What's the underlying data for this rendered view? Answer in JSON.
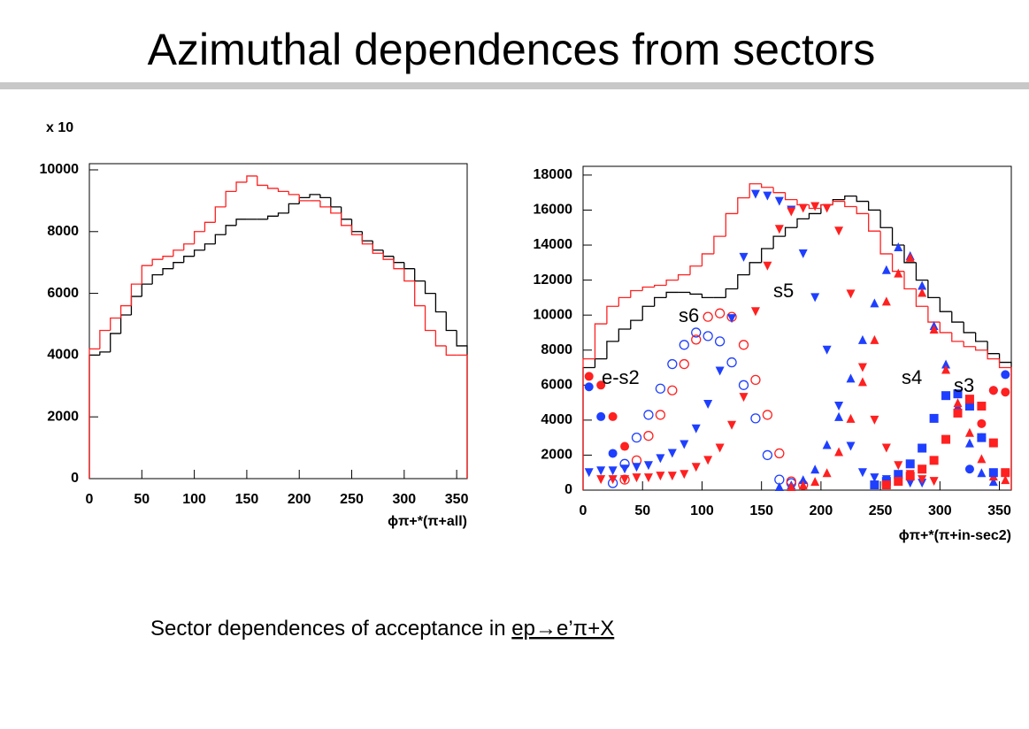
{
  "title": "Azimuthal dependences from sectors",
  "caption": {
    "text": "Sector dependences of acceptance in",
    "formula": "ep→e’π+X"
  },
  "chart_data": [
    {
      "type": "histogram",
      "y_multiplier": "x 10",
      "xlabel": "ϕπ+*(π+all)",
      "bins": [
        0,
        10,
        20,
        30,
        40,
        50,
        60,
        70,
        80,
        90,
        100,
        110,
        120,
        130,
        140,
        150,
        160,
        170,
        180,
        190,
        200,
        210,
        220,
        230,
        240,
        250,
        260,
        270,
        280,
        290,
        300,
        310,
        320,
        330,
        340,
        350,
        360
      ],
      "xlim": [
        0,
        360
      ],
      "xticks": [
        0,
        50,
        100,
        150,
        200,
        250,
        300,
        350
      ],
      "ylim": [
        0,
        10200
      ],
      "yticks": [
        0,
        2000,
        4000,
        6000,
        8000,
        10000
      ],
      "series": [
        {
          "color": "#000000",
          "values": [
            4000,
            4100,
            4700,
            5300,
            5900,
            6300,
            6600,
            6800,
            7000,
            7200,
            7400,
            7600,
            7900,
            8200,
            8400,
            8400,
            8400,
            8500,
            8600,
            8900,
            9100,
            9200,
            9100,
            8800,
            8400,
            8000,
            7700,
            7400,
            7200,
            7000,
            6800,
            6400,
            6000,
            5400,
            4800,
            4300
          ]
        },
        {
          "color": "#ff2020",
          "values": [
            4200,
            4800,
            5200,
            5600,
            6300,
            6900,
            7100,
            7200,
            7400,
            7600,
            8000,
            8300,
            8800,
            9300,
            9600,
            9800,
            9500,
            9400,
            9300,
            9200,
            9000,
            9000,
            8800,
            8600,
            8200,
            7900,
            7600,
            7300,
            7100,
            6800,
            6400,
            5600,
            4800,
            4300,
            4000,
            4000
          ]
        }
      ]
    },
    {
      "type": "histogram",
      "xlabel": "ϕπ+*(π+in-sec2)",
      "bins": [
        0,
        10,
        20,
        30,
        40,
        50,
        60,
        70,
        80,
        90,
        100,
        110,
        120,
        130,
        140,
        150,
        160,
        170,
        180,
        190,
        200,
        210,
        220,
        230,
        240,
        250,
        260,
        270,
        280,
        290,
        300,
        310,
        320,
        330,
        340,
        350,
        360
      ],
      "xlim": [
        0,
        360
      ],
      "xticks": [
        0,
        50,
        100,
        150,
        200,
        250,
        300,
        350
      ],
      "ylim": [
        0,
        18500
      ],
      "yticks": [
        0,
        2000,
        4000,
        6000,
        8000,
        10000,
        12000,
        14000,
        16000,
        18000
      ],
      "series": [
        {
          "color": "#000000",
          "values": [
            7000,
            7500,
            8500,
            9200,
            9700,
            10500,
            11000,
            11300,
            11300,
            11200,
            11000,
            11000,
            11500,
            12300,
            13000,
            13800,
            14500,
            15000,
            15500,
            15800,
            16300,
            16600,
            16800,
            16500,
            16000,
            15000,
            14000,
            13000,
            12000,
            11000,
            10200,
            9600,
            9000,
            8500,
            7800,
            7300
          ]
        },
        {
          "color": "#ff2020",
          "values": [
            7500,
            9500,
            10500,
            11000,
            11400,
            11600,
            11700,
            12000,
            12300,
            12800,
            13500,
            14500,
            15800,
            16700,
            17500,
            17300,
            17000,
            16600,
            16300,
            16100,
            16300,
            16500,
            16200,
            15800,
            14800,
            13500,
            12500,
            11500,
            10500,
            9600,
            9000,
            8500,
            8200,
            8000,
            7500,
            7000
          ]
        }
      ],
      "markers": [
        {
          "color": "#1f3fff",
          "marker": "open-circle",
          "x": [
            25,
            35,
            45,
            55,
            65,
            75,
            85,
            95,
            105,
            115,
            125,
            135,
            145,
            155,
            165,
            175
          ],
          "values": [
            400,
            1500,
            3000,
            4300,
            5800,
            7200,
            8300,
            9000,
            8800,
            8500,
            7300,
            6000,
            4100,
            2000,
            600,
            400
          ]
        },
        {
          "color": "#ff2020",
          "marker": "open-circle",
          "x": [
            35,
            45,
            55,
            65,
            75,
            85,
            95,
            105,
            115,
            125,
            135,
            145,
            155,
            165,
            175,
            185
          ],
          "values": [
            600,
            1700,
            3100,
            4300,
            5700,
            7200,
            8600,
            9900,
            10100,
            9900,
            8300,
            6300,
            4300,
            2100,
            500,
            300
          ]
        },
        {
          "color": "#1f3fff",
          "marker": "triangle-down",
          "x": [
            5,
            15,
            25,
            35,
            45,
            55,
            65,
            75,
            85,
            95,
            105,
            115,
            125,
            135,
            145,
            155,
            165,
            175,
            185,
            195,
            205,
            215,
            225,
            235,
            245,
            255,
            265,
            275,
            285
          ],
          "values": [
            1000,
            1100,
            1100,
            1200,
            1300,
            1400,
            1800,
            2100,
            2600,
            3500,
            4900,
            6800,
            9800,
            13300,
            16900,
            16800,
            16500,
            16000,
            13500,
            11000,
            8000,
            4800,
            2500,
            1000,
            700,
            600,
            500,
            400,
            400
          ]
        },
        {
          "color": "#ff2020",
          "marker": "triangle-down",
          "x": [
            15,
            25,
            35,
            45,
            55,
            65,
            75,
            85,
            95,
            105,
            115,
            125,
            135,
            145,
            155,
            165,
            175,
            185,
            195,
            205,
            215,
            225,
            235,
            245,
            255,
            265,
            275,
            285,
            295
          ],
          "values": [
            600,
            600,
            600,
            700,
            700,
            800,
            800,
            900,
            1300,
            1700,
            2400,
            3700,
            5300,
            10200,
            12800,
            14900,
            15900,
            16100,
            16200,
            16100,
            14800,
            11200,
            7000,
            4000,
            2400,
            1400,
            900,
            600,
            500
          ]
        },
        {
          "color": "#1f3fff",
          "marker": "triangle-up",
          "x": [
            165,
            175,
            185,
            195,
            205,
            215,
            225,
            235,
            245,
            255,
            265,
            275,
            285,
            295,
            305,
            315,
            325,
            335,
            345
          ],
          "values": [
            200,
            300,
            600,
            1200,
            2600,
            4200,
            6400,
            8600,
            10700,
            12600,
            13900,
            13400,
            11700,
            9400,
            7200,
            4800,
            2700,
            1000,
            500
          ]
        },
        {
          "color": "#ff2020",
          "marker": "triangle-up",
          "x": [
            175,
            185,
            195,
            205,
            215,
            225,
            235,
            245,
            255,
            265,
            275,
            285,
            295,
            305,
            315,
            325,
            335,
            345,
            355
          ],
          "values": [
            200,
            300,
            500,
            1000,
            2200,
            4100,
            6200,
            8600,
            10800,
            12400,
            13300,
            11300,
            9200,
            6900,
            5000,
            3300,
            1800,
            800,
            600
          ]
        },
        {
          "color": "#1f3fff",
          "marker": "square",
          "x": [
            245,
            255,
            265,
            275,
            285,
            295,
            305,
            315,
            325,
            335,
            345
          ],
          "values": [
            300,
            500,
            900,
            1500,
            2400,
            4100,
            5400,
            5500,
            4800,
            3000,
            1000
          ]
        },
        {
          "color": "#ff2020",
          "marker": "square",
          "x": [
            255,
            265,
            275,
            285,
            295,
            305,
            315,
            325,
            335,
            345,
            355
          ],
          "values": [
            300,
            500,
            800,
            1200,
            1700,
            2900,
            4400,
            5200,
            4800,
            2700,
            1000
          ]
        },
        {
          "color": "#1f3fff",
          "marker": "circle",
          "x": [
            5,
            15,
            25,
            325,
            335,
            345,
            355
          ],
          "values": [
            5900,
            4200,
            2100,
            1200,
            3000,
            5700,
            6600
          ]
        },
        {
          "color": "#ff2020",
          "marker": "circle",
          "x": [
            5,
            15,
            25,
            35,
            335,
            345,
            355
          ],
          "values": [
            6500,
            6000,
            4200,
            2500,
            3800,
            5700,
            5600
          ]
        }
      ],
      "annotations": [
        "e-s2",
        "s6",
        "s5",
        "s4",
        "s3"
      ]
    }
  ]
}
